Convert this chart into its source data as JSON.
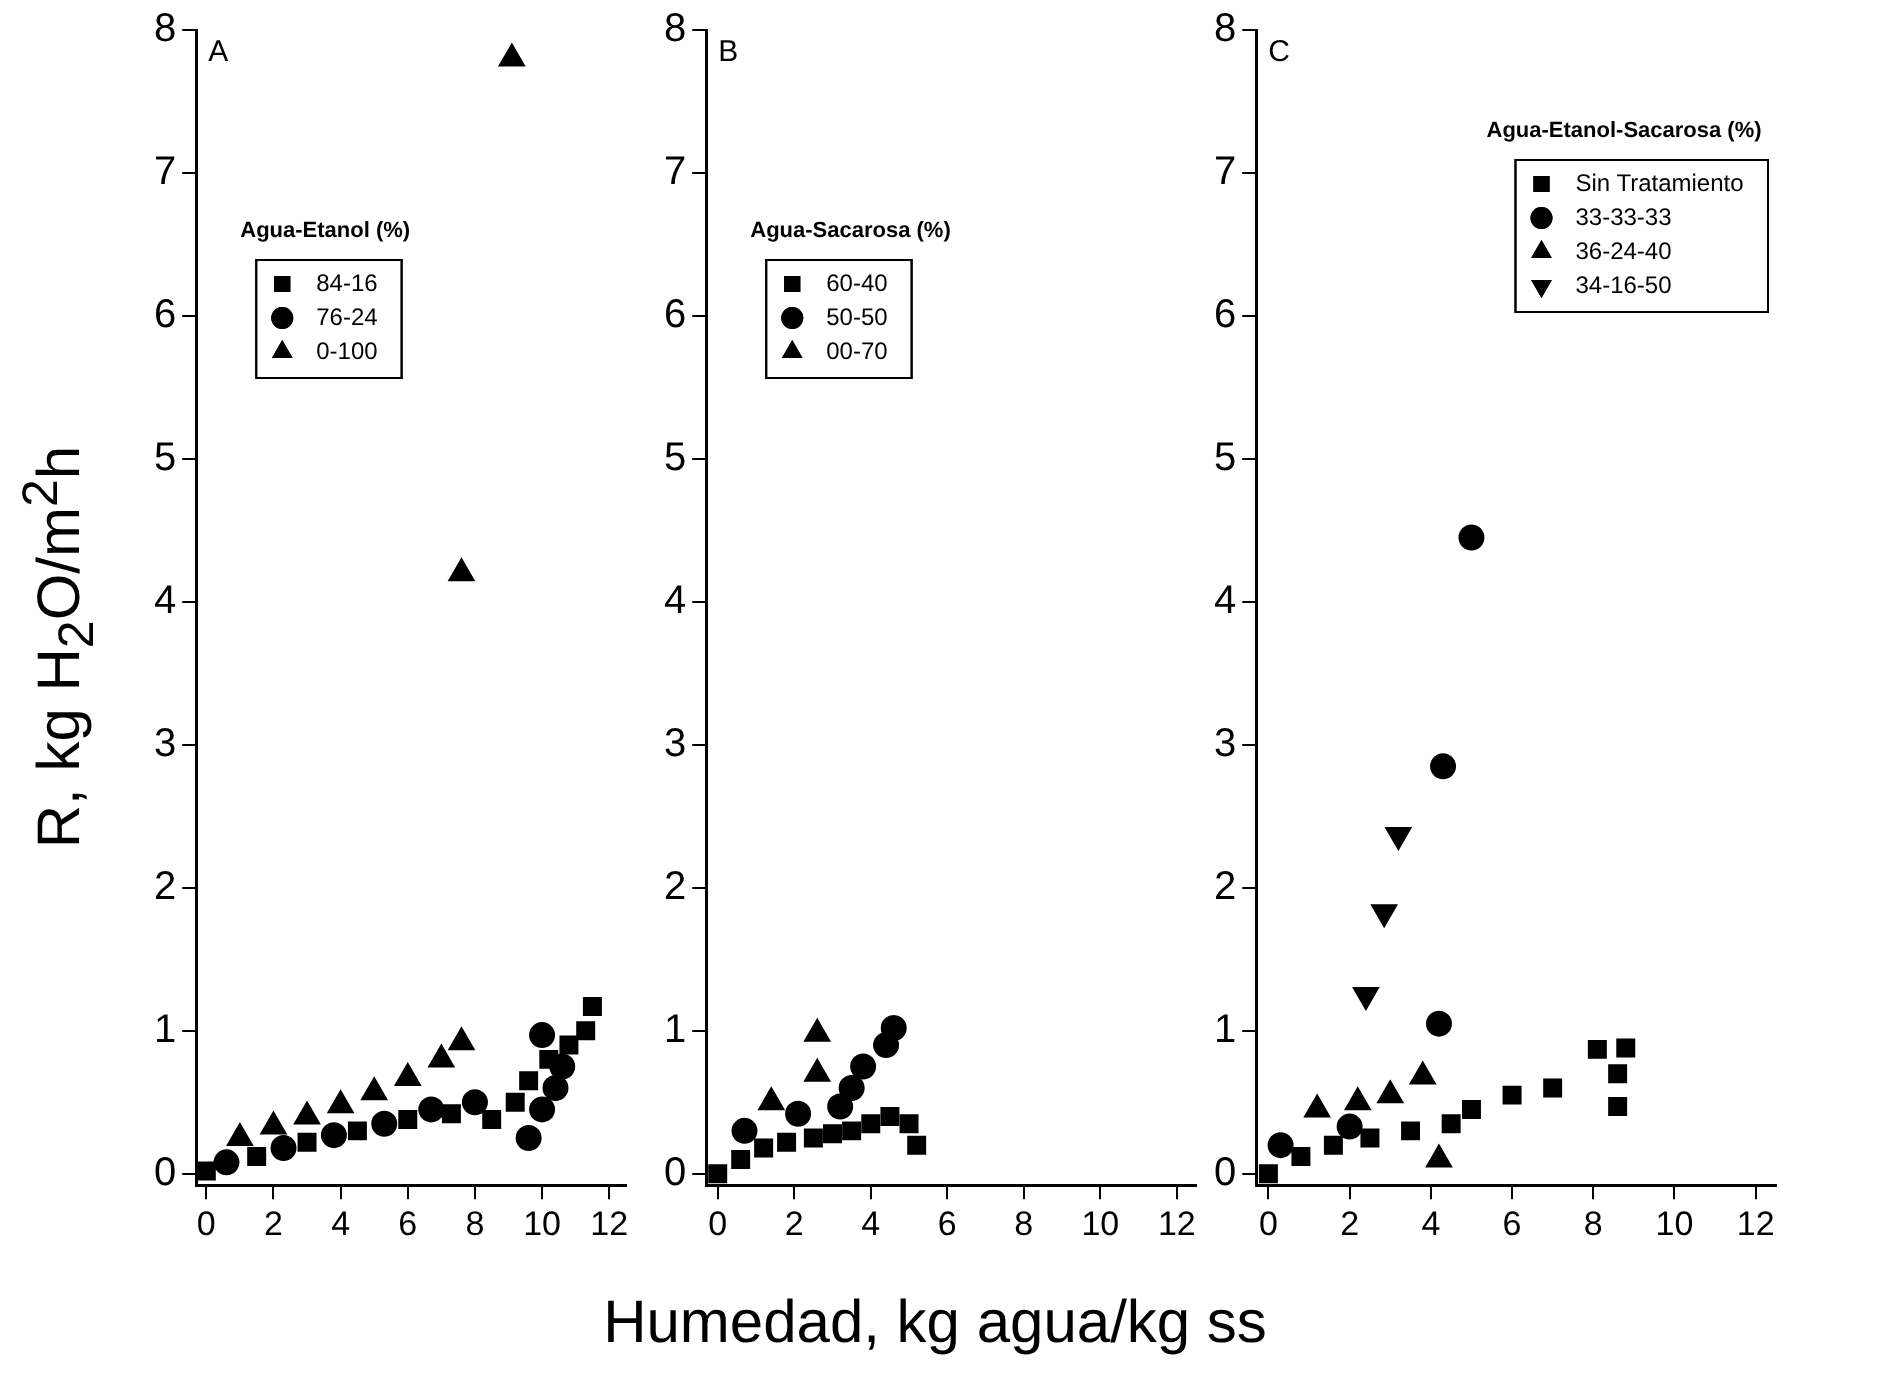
{
  "chart_data": [
    {
      "type": "scatter",
      "ylabel": "R, kg H$_{2}$O/m$^{2}$h",
      "annotations": [
        "A"
      ],
      "legend_title": "Agua-Etanol (%)",
      "legend": "top left",
      "xlim": [
        -0.3,
        12.5
      ],
      "ylim": [
        -0.08,
        8
      ],
      "xticks": [
        0,
        2,
        4,
        6,
        8,
        10,
        12
      ],
      "yticks": [
        0,
        1,
        2,
        3,
        4,
        5,
        6,
        7,
        8
      ],
      "grid": false,
      "series": [
        {
          "name": "84-16",
          "color": "#000000",
          "marker": "square",
          "x": [
            0,
            1.5,
            3,
            4.5,
            6,
            7.3,
            8.5,
            9.2,
            9.6,
            10.2,
            10.8,
            11.3,
            11.5
          ],
          "values": [
            0.02,
            0.12,
            0.22,
            0.3,
            0.38,
            0.42,
            0.38,
            0.5,
            0.65,
            0.8,
            0.9,
            1.0,
            1.17
          ]
        },
        {
          "name": "76-24",
          "color": "#000000",
          "marker": "circle",
          "x": [
            0.6,
            2.3,
            3.8,
            5.3,
            6.7,
            8.0,
            9.6,
            10.0,
            10.4,
            10.6,
            10.0
          ],
          "values": [
            0.08,
            0.18,
            0.27,
            0.35,
            0.45,
            0.5,
            0.25,
            0.45,
            0.6,
            0.75,
            0.97
          ]
        },
        {
          "name": "0-100",
          "color": "#000000",
          "marker": "triangle",
          "x": [
            1,
            2,
            3,
            4,
            5,
            6,
            7,
            7.6,
            7.6,
            9.1
          ],
          "values": [
            0.25,
            0.33,
            0.4,
            0.48,
            0.57,
            0.67,
            0.8,
            0.92,
            4.2,
            7.8
          ]
        }
      ]
    },
    {
      "type": "scatter",
      "xlabel": "Humedad, kg agua/kg ss",
      "annotations": [
        "B"
      ],
      "legend_title": "Agua-Sacarosa (%)",
      "legend": "top left",
      "xlim": [
        -0.3,
        12.5
      ],
      "ylim": [
        -0.08,
        8
      ],
      "xticks": [
        0,
        2,
        4,
        6,
        8,
        10,
        12
      ],
      "yticks": [
        0,
        1,
        2,
        3,
        4,
        5,
        6,
        7,
        8
      ],
      "grid": false,
      "series": [
        {
          "name": "60-40",
          "color": "#000000",
          "marker": "square",
          "x": [
            0,
            0.6,
            1.2,
            1.8,
            2.5,
            3,
            3.5,
            4,
            4.5,
            5,
            5.2
          ],
          "values": [
            0,
            0.1,
            0.18,
            0.22,
            0.25,
            0.28,
            0.3,
            0.35,
            0.4,
            0.35,
            0.2
          ]
        },
        {
          "name": "50-50",
          "color": "#000000",
          "marker": "circle",
          "x": [
            0.7,
            2.1,
            3.2,
            3.5,
            3.8,
            4.4,
            4.6
          ],
          "values": [
            0.3,
            0.42,
            0.47,
            0.6,
            0.75,
            0.9,
            1.02
          ]
        },
        {
          "name": "00-70",
          "color": "#000000",
          "marker": "triangle",
          "x": [
            1.4,
            2.6,
            2.6
          ],
          "values": [
            0.5,
            0.7,
            0.98
          ]
        }
      ]
    },
    {
      "type": "scatter",
      "annotations": [
        "C"
      ],
      "legend_title": "Agua-Etanol-Sacarosa (%)",
      "legend": "top right",
      "xlim": [
        -0.3,
        12.5
      ],
      "ylim": [
        -0.08,
        8
      ],
      "xticks": [
        0,
        2,
        4,
        6,
        8,
        10,
        12
      ],
      "yticks": [
        0,
        1,
        2,
        3,
        4,
        5,
        6,
        7,
        8
      ],
      "grid": false,
      "series": [
        {
          "name": "Sin Tratamiento",
          "color": "#000000",
          "marker": "square",
          "x": [
            0,
            0.8,
            1.6,
            2.5,
            3.5,
            4.5,
            5,
            6,
            7,
            8.1,
            8.8,
            8.6,
            8.6
          ],
          "values": [
            0,
            0.12,
            0.2,
            0.25,
            0.3,
            0.35,
            0.45,
            0.55,
            0.6,
            0.87,
            0.88,
            0.7,
            0.47
          ]
        },
        {
          "name": "33-33-33",
          "color": "#000000",
          "marker": "circle",
          "x": [
            0.3,
            2.0,
            4.2,
            4.3,
            5.0
          ],
          "values": [
            0.2,
            0.33,
            1.05,
            2.85,
            4.45
          ]
        },
        {
          "name": "36-24-40",
          "color": "#000000",
          "marker": "triangle",
          "x": [
            1.2,
            2.2,
            3,
            3.8,
            4.2
          ],
          "values": [
            0.45,
            0.5,
            0.55,
            0.68,
            0.1
          ]
        },
        {
          "name": "34-16-50",
          "color": "#000000",
          "marker": "triangle-down",
          "x": [
            2.4,
            2.85,
            3.2
          ],
          "values": [
            1.25,
            1.83,
            2.37
          ]
        }
      ]
    }
  ]
}
